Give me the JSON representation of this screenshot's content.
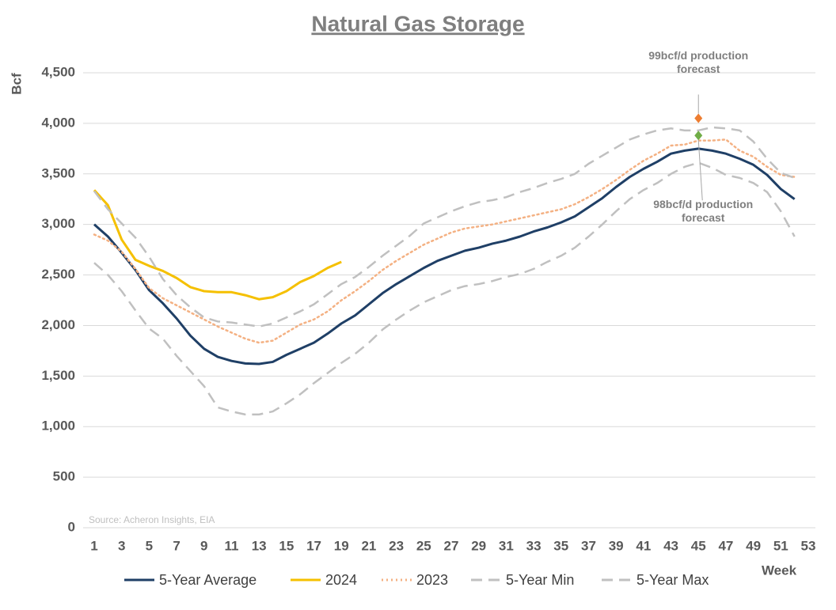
{
  "chart_data": {
    "type": "line",
    "title": "Natural Gas Storage",
    "ylabel": "Bcf",
    "xlabel": "Week",
    "source": "Source: Acheron Insights, EIA",
    "x": [
      1,
      2,
      3,
      4,
      5,
      6,
      7,
      8,
      9,
      10,
      11,
      12,
      13,
      14,
      15,
      16,
      17,
      18,
      19,
      20,
      21,
      22,
      23,
      24,
      25,
      26,
      27,
      28,
      29,
      30,
      31,
      32,
      33,
      34,
      35,
      36,
      37,
      38,
      39,
      40,
      41,
      42,
      43,
      44,
      45,
      46,
      47,
      48,
      49,
      50,
      51,
      52
    ],
    "xlim": [
      1,
      53
    ],
    "xticks": [
      1,
      3,
      5,
      7,
      9,
      11,
      13,
      15,
      17,
      19,
      21,
      23,
      25,
      27,
      29,
      31,
      33,
      35,
      37,
      39,
      41,
      43,
      45,
      47,
      49,
      51,
      53
    ],
    "ylim": [
      0,
      4500
    ],
    "yticks": [
      0,
      500,
      {
        "value": 1000,
        "label": "1,000"
      },
      {
        "value": 1500,
        "label": "1,500"
      },
      {
        "value": 2000,
        "label": "2,000"
      },
      {
        "value": 2500,
        "label": "2,500"
      },
      {
        "value": 3000,
        "label": "3,000"
      },
      {
        "value": 3500,
        "label": "3,500"
      },
      {
        "value": 4000,
        "label": "4,000"
      },
      {
        "value": 4500,
        "label": "4,500"
      }
    ],
    "grid": true,
    "series": [
      {
        "name": "5-Year Average",
        "color": "#1f3f66",
        "style": "solid",
        "values": [
          3000,
          2880,
          2720,
          2550,
          2350,
          2220,
          2070,
          1900,
          1770,
          1690,
          1650,
          1625,
          1620,
          1640,
          1710,
          1770,
          1830,
          1920,
          2020,
          2100,
          2210,
          2320,
          2410,
          2490,
          2570,
          2640,
          2690,
          2740,
          2770,
          2810,
          2840,
          2880,
          2930,
          2970,
          3020,
          3080,
          3170,
          3260,
          3370,
          3470,
          3550,
          3620,
          3700,
          3730,
          3750,
          3730,
          3700,
          3650,
          3590,
          3490,
          3350,
          3250
        ]
      },
      {
        "name": "2024",
        "color": "#f5c000",
        "style": "solid",
        "values": [
          3340,
          3190,
          2850,
          2650,
          2590,
          2540,
          2470,
          2380,
          2340,
          2330,
          2330,
          2300,
          2260,
          2280,
          2340,
          2430,
          2490,
          2570,
          2630,
          null,
          null,
          null,
          null,
          null,
          null,
          null,
          null,
          null,
          null,
          null,
          null,
          null,
          null,
          null,
          null,
          null,
          null,
          null,
          null,
          null,
          null,
          null,
          null,
          null,
          null,
          null,
          null,
          null,
          null,
          null,
          null,
          null
        ]
      },
      {
        "name": "2023",
        "color": "#f4b183",
        "style": "dotted",
        "values": [
          2900,
          2840,
          2730,
          2560,
          2370,
          2270,
          2200,
          2130,
          2060,
          1990,
          1930,
          1870,
          1830,
          1850,
          1930,
          2010,
          2060,
          2140,
          2250,
          2340,
          2440,
          2550,
          2640,
          2720,
          2800,
          2860,
          2920,
          2960,
          2980,
          3000,
          3030,
          3060,
          3090,
          3120,
          3150,
          3200,
          3270,
          3350,
          3440,
          3540,
          3630,
          3700,
          3780,
          3790,
          3830,
          3830,
          3840,
          3730,
          3670,
          3570,
          3490,
          3470
        ]
      },
      {
        "name": "5-Year Min",
        "color": "#c0c0c0",
        "style": "dashed",
        "values": [
          2620,
          2500,
          2340,
          2150,
          1970,
          1870,
          1700,
          1550,
          1400,
          1190,
          1150,
          1120,
          1120,
          1150,
          1230,
          1320,
          1430,
          1530,
          1630,
          1720,
          1830,
          1960,
          2060,
          2150,
          2230,
          2290,
          2350,
          2390,
          2410,
          2440,
          2480,
          2510,
          2560,
          2630,
          2690,
          2770,
          2880,
          3000,
          3130,
          3250,
          3340,
          3410,
          3500,
          3570,
          3610,
          3560,
          3490,
          3460,
          3410,
          3320,
          3130,
          2880
        ]
      },
      {
        "name": "5-Year Max",
        "color": "#c0c0c0",
        "style": "dashed",
        "values": [
          3330,
          3150,
          3010,
          2870,
          2680,
          2460,
          2300,
          2180,
          2080,
          2040,
          2030,
          2010,
          1990,
          2020,
          2080,
          2140,
          2210,
          2310,
          2410,
          2480,
          2580,
          2690,
          2790,
          2890,
          3010,
          3070,
          3130,
          3180,
          3220,
          3240,
          3270,
          3320,
          3360,
          3410,
          3450,
          3500,
          3600,
          3680,
          3760,
          3840,
          3890,
          3930,
          3950,
          3930,
          3930,
          3960,
          3950,
          3930,
          3820,
          3650,
          3510,
          3460
        ]
      }
    ],
    "points": [
      {
        "label": "99bcf/d production forecast",
        "x": 45,
        "y": 4050,
        "color": "#ed7d31"
      },
      {
        "label": "98bcf/d production forecast",
        "x": 45,
        "y": 3880,
        "color": "#70ad47"
      }
    ]
  }
}
